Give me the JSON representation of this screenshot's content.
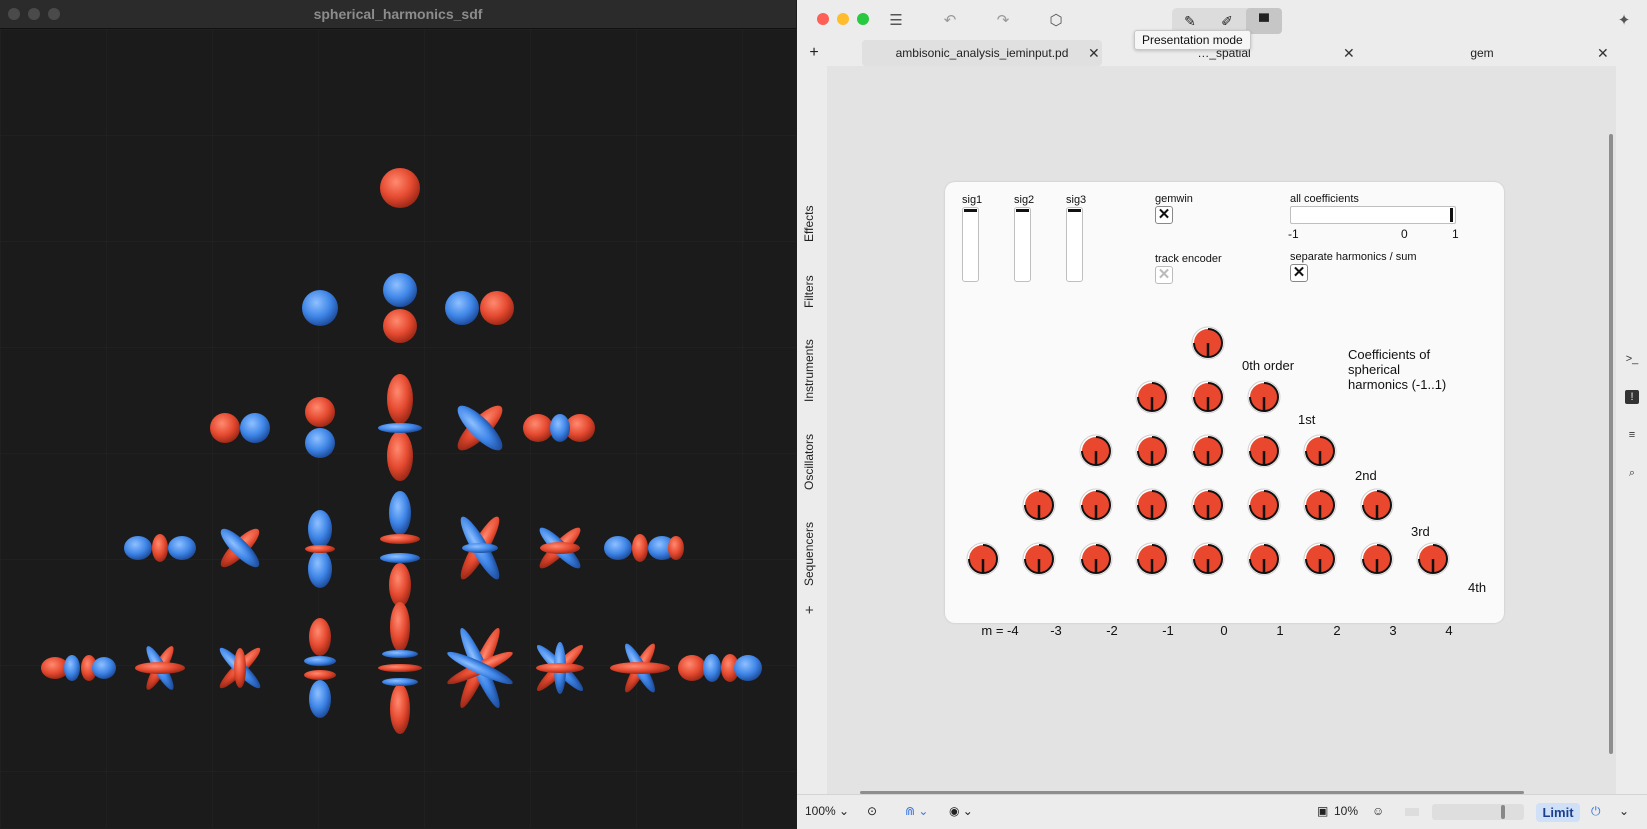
{
  "gem_window": {
    "title": "spherical_harmonics_sdf"
  },
  "toolbar": {
    "tooltip": "Presentation mode"
  },
  "tabs": [
    {
      "label": "ambisonic_analysis_ieminput.pd"
    },
    {
      "label": "…_spatial"
    },
    {
      "label": "gem"
    }
  ],
  "sidebar": {
    "items": [
      "Effects",
      "Filters",
      "Instruments",
      "Oscillators",
      "Sequencers"
    ],
    "add_label": "+"
  },
  "patch": {
    "sliders": [
      {
        "label": "sig1"
      },
      {
        "label": "sig2"
      },
      {
        "label": "sig3"
      }
    ],
    "gemwin": {
      "label": "gemwin",
      "checked": true
    },
    "track_encoder": {
      "label": "track encoder",
      "checked": false
    },
    "all_coefficients": {
      "label": "all coefficients",
      "min": "-1",
      "mid": "0",
      "max": "1",
      "value": 1
    },
    "separate": {
      "label": "separate harmonics / sum",
      "checked": true
    },
    "coeff_title": "Coefficients of spherical harmonics (-1..1)",
    "orders": [
      "0th order",
      "1st",
      "2nd",
      "3rd",
      "4th"
    ],
    "m_labels": [
      "m = -4",
      "-3",
      "-2",
      "-1",
      "0",
      "1",
      "2",
      "3",
      "4"
    ],
    "knob_value": 0
  },
  "statusbar": {
    "zoom": "100%",
    "cpu": "10%",
    "limit": "Limit"
  },
  "colors": {
    "knob_fill": "#e9472e",
    "lobe_red": "#e54a30",
    "lobe_blue": "#3f86e8"
  }
}
